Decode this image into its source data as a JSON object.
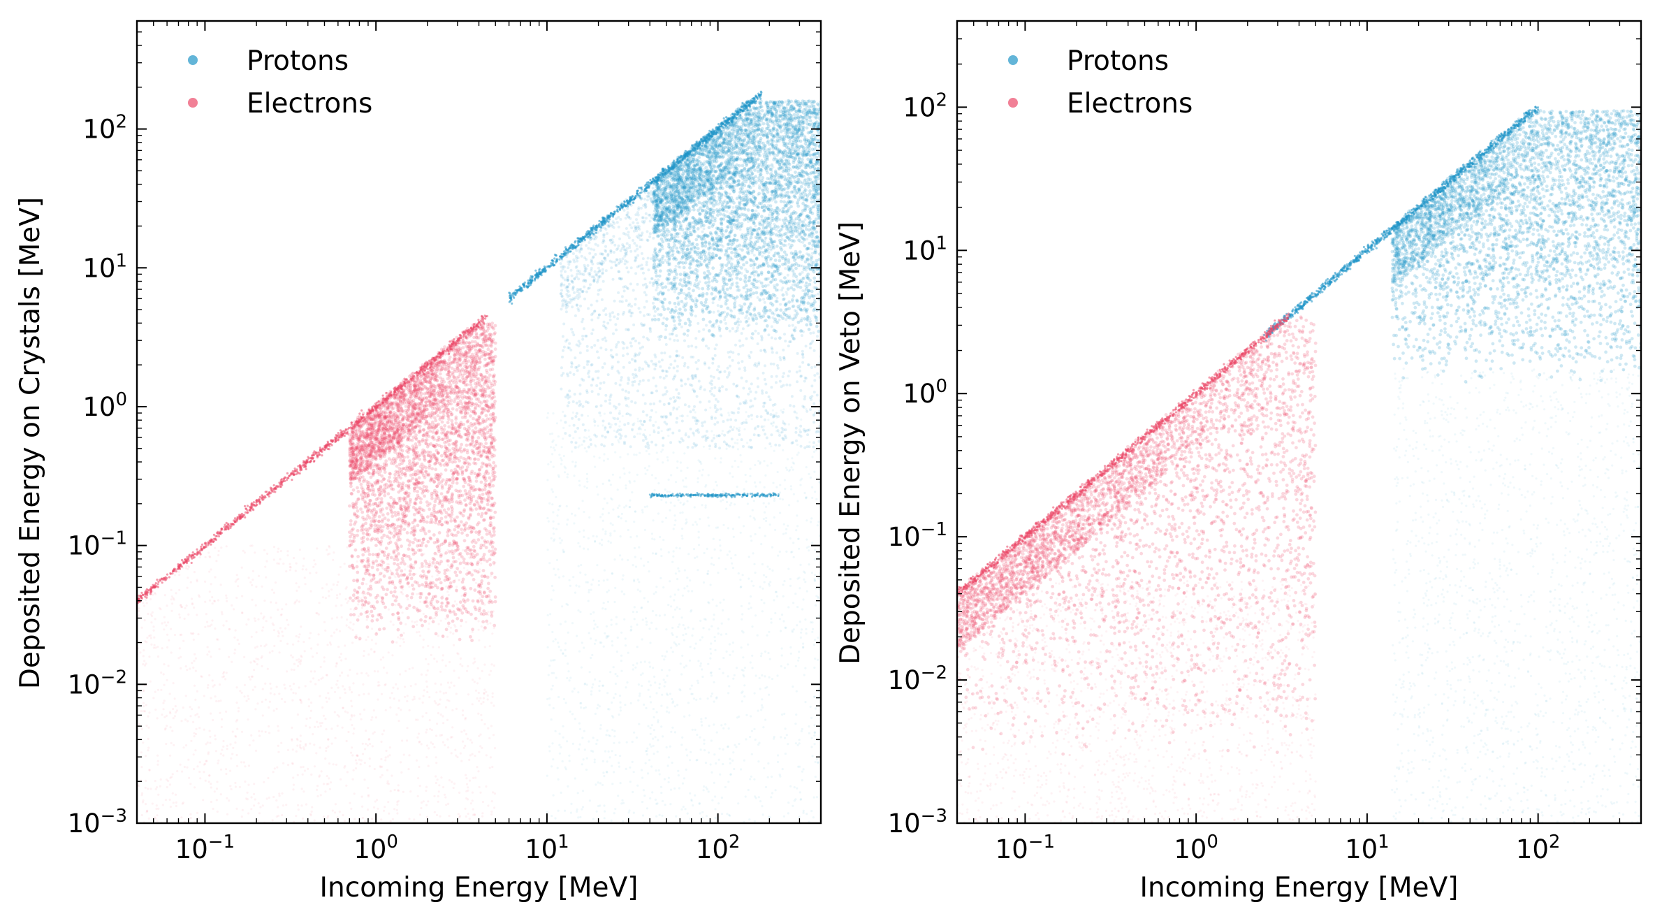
{
  "colors": {
    "protons": "#2196C8",
    "electrons": "#EB4A69",
    "axes": "#000000"
  },
  "chart_data": [
    {
      "type": "scatter",
      "xlabel": "Incoming Energy [MeV]",
      "ylabel": "Deposited Energy on Crystals [MeV]",
      "xscale": "log",
      "yscale": "log",
      "xlim": [
        0.04,
        400
      ],
      "ylim": [
        0.001,
        600
      ],
      "x_ticks": [
        {
          "base": "10",
          "exp": "−1",
          "value": 0.1
        },
        {
          "base": "10",
          "exp": "0",
          "value": 1
        },
        {
          "base": "10",
          "exp": "1",
          "value": 10
        },
        {
          "base": "10",
          "exp": "2",
          "value": 100
        }
      ],
      "y_ticks": [
        {
          "base": "10",
          "exp": "−3",
          "value": 0.001
        },
        {
          "base": "10",
          "exp": "−2",
          "value": 0.01
        },
        {
          "base": "10",
          "exp": "−1",
          "value": 0.1
        },
        {
          "base": "10",
          "exp": "0",
          "value": 1
        },
        {
          "base": "10",
          "exp": "1",
          "value": 10
        },
        {
          "base": "10",
          "exp": "2",
          "value": 100
        }
      ],
      "legend": {
        "placement": "top-left",
        "entries": [
          "Protons",
          "Electrons"
        ]
      },
      "grid": false,
      "series": [
        {
          "name": "Protons",
          "regions": [
            {
              "kind": "diagonal_band",
              "x": [
                6,
                180
              ],
              "y_equals_x": true
            },
            {
              "kind": "cloud",
              "x": [
                12,
                400
              ],
              "y": [
                0.5,
                160
              ],
              "density": "high"
            },
            {
              "kind": "dense_core",
              "x": [
                42,
                400
              ],
              "y": [
                3,
                160
              ]
            },
            {
              "kind": "horizontal_line",
              "x": [
                40,
                230
              ],
              "y": 0.23
            },
            {
              "kind": "sparse_halo",
              "x": [
                10,
                400
              ],
              "y": [
                0.001,
                1
              ]
            }
          ]
        },
        {
          "name": "Electrons",
          "regions": [
            {
              "kind": "diagonal_band",
              "x": [
                0.04,
                4.5
              ],
              "y_equals_x": true
            },
            {
              "kind": "dense_core",
              "x": [
                0.7,
                5
              ],
              "y": [
                0.02,
                4
              ]
            },
            {
              "kind": "sparse_halo",
              "x": [
                0.04,
                5
              ],
              "y": [
                0.001,
                0.1
              ]
            }
          ]
        }
      ]
    },
    {
      "type": "scatter",
      "xlabel": "Incoming Energy [MeV]",
      "ylabel": "Deposited Energy on Veto [MeV]",
      "xscale": "log",
      "yscale": "log",
      "xlim": [
        0.04,
        400
      ],
      "ylim": [
        0.001,
        400
      ],
      "x_ticks": [
        {
          "base": "10",
          "exp": "−1",
          "value": 0.1
        },
        {
          "base": "10",
          "exp": "0",
          "value": 1
        },
        {
          "base": "10",
          "exp": "1",
          "value": 10
        },
        {
          "base": "10",
          "exp": "2",
          "value": 100
        }
      ],
      "y_ticks": [
        {
          "base": "10",
          "exp": "−3",
          "value": 0.001
        },
        {
          "base": "10",
          "exp": "−2",
          "value": 0.01
        },
        {
          "base": "10",
          "exp": "−1",
          "value": 0.1
        },
        {
          "base": "10",
          "exp": "0",
          "value": 1
        },
        {
          "base": "10",
          "exp": "1",
          "value": 10
        },
        {
          "base": "10",
          "exp": "2",
          "value": 100
        }
      ],
      "legend": {
        "placement": "top-left",
        "entries": [
          "Protons",
          "Electrons"
        ]
      },
      "grid": false,
      "series": [
        {
          "name": "Protons",
          "regions": [
            {
              "kind": "diagonal_band",
              "x": [
                2.5,
                100
              ],
              "y_equals_x": true
            },
            {
              "kind": "dense_core",
              "x": [
                14,
                400
              ],
              "y": [
                1.2,
                95
              ]
            },
            {
              "kind": "sparse_halo",
              "x": [
                14,
                400
              ],
              "y": [
                0.001,
                1.5
              ]
            }
          ]
        },
        {
          "name": "Electrons",
          "regions": [
            {
              "kind": "diagonal_band",
              "x": [
                0.04,
                3.5
              ],
              "y_equals_x": true
            },
            {
              "kind": "dense_core",
              "x": [
                0.04,
                5
              ],
              "y": [
                0.003,
                3.5
              ]
            },
            {
              "kind": "sparse_halo",
              "x": [
                0.04,
                5
              ],
              "y": [
                0.001,
                0.05
              ]
            }
          ]
        }
      ]
    }
  ]
}
